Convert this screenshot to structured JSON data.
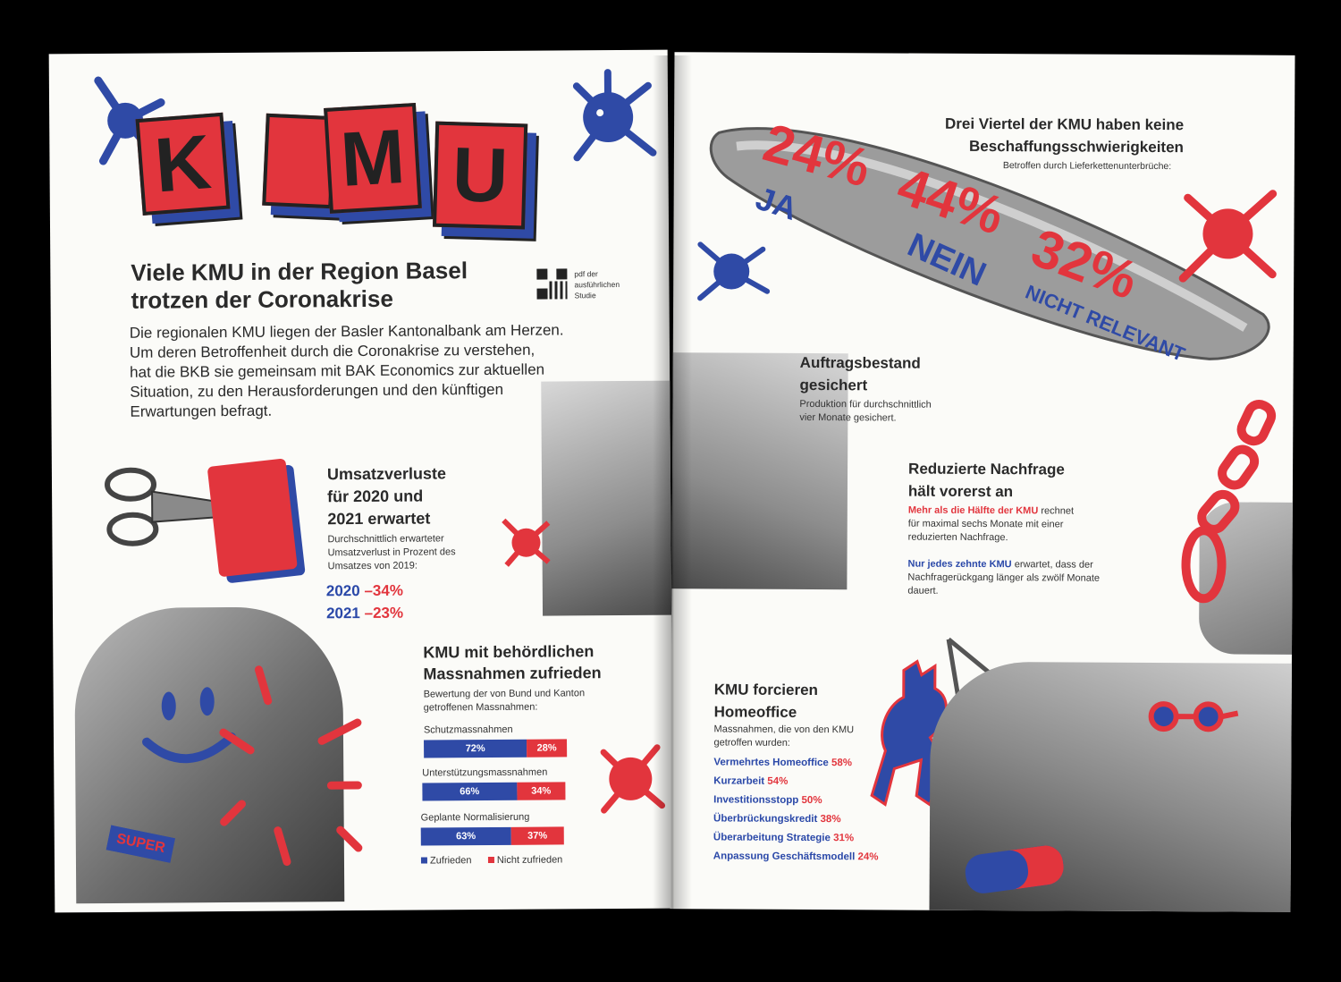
{
  "left": {
    "logo_letters": [
      "K",
      "M",
      "U"
    ],
    "headline_1": "Viele KMU in der Region Basel",
    "headline_2": "trotzen der Coronakrise",
    "qr_note_1": "pdf der",
    "qr_note_2": "ausführlichen",
    "qr_note_3": "Studie",
    "intro": [
      "Die regionalen KMU liegen der Basler Kantonalbank am Herzen.",
      "Um deren Betroffenheit durch die Coronakrise zu verstehen,",
      "hat die BKB sie gemeinsam mit BAK Economics zur aktuellen",
      "Situation, zu den Herausforderungen und den künftigen",
      "Erwartungen befragt."
    ],
    "umsatz": {
      "title": [
        "Umsatzverluste",
        "für 2020 und",
        "2021 erwartet"
      ],
      "desc": [
        "Durchschnittlich erwarteter",
        "Umsatzverlust in Prozent des",
        "Umsatzes von 2019:"
      ],
      "y1": "2020",
      "v1": "–34%",
      "y2": "2021",
      "v2": "–23%"
    },
    "badge": "SUPER",
    "massnahmen": {
      "title": [
        "KMU mit behördlichen",
        "Massnahmen zufrieden"
      ],
      "desc": [
        "Bewertung der von Bund und Kanton",
        "getroffenen Massnahmen:"
      ],
      "rows": [
        {
          "label": "Schutzmassnahmen",
          "yes": 72,
          "yes_text": "72%",
          "no_text": "28%"
        },
        {
          "label": "Unterstützungsmassnahmen",
          "yes": 66,
          "yes_text": "66%",
          "no_text": "34%"
        },
        {
          "label": "Geplante Normalisierung",
          "yes": 63,
          "yes_text": "63%",
          "no_text": "37%"
        }
      ],
      "legend_yes": "Zufrieden",
      "legend_no": "Nicht zufrieden"
    }
  },
  "right": {
    "supply": {
      "title_1": "Drei Viertel der KMU haben keine",
      "title_2": "Beschaffungsschwierigkeiten",
      "sub": "Betroffen durch Lieferkettenunterbrüche:",
      "v_ja": "24%",
      "v_nein": "44%",
      "v_nr": "32%",
      "l_ja": "JA",
      "l_nein": "NEIN",
      "l_nr": "NICHT RELEVANT"
    },
    "auftrag": {
      "title": [
        "Auftragsbestand",
        "gesichert"
      ],
      "desc": [
        "Produktion für durchschnittlich",
        "vier Monate gesichert."
      ]
    },
    "nachfrage": {
      "title": [
        "Reduzierte Nachfrage",
        "hält vorerst an"
      ],
      "p1_strong": "Mehr als die Hälfte der KMU",
      "p1_rest": [
        "rechnet",
        "für maximal sechs Monate mit einer",
        "reduzierten Nachfrage."
      ],
      "p2_strong": "Nur jedes zehnte KMU",
      "p2_rest": [
        "erwartet, dass der",
        "Nachfragerückgang länger als zwölf Monate",
        "dauert."
      ]
    },
    "homeoffice": {
      "title": [
        "KMU forcieren",
        "Homeoffice"
      ],
      "desc": [
        "Massnahmen, die von den KMU",
        "getroffen wurden:"
      ],
      "items": [
        {
          "label": "Vermehrtes Homeoffice",
          "value": "58%"
        },
        {
          "label": "Kurzarbeit",
          "value": "54%"
        },
        {
          "label": "Investitionsstopp",
          "value": "50%"
        },
        {
          "label": "Überbrückungskredit",
          "value": "38%"
        },
        {
          "label": "Überarbeitung Strategie",
          "value": "31%"
        },
        {
          "label": "Anpassung Geschäftsmodell",
          "value": "24%"
        }
      ]
    }
  },
  "colors": {
    "blue": "#2f4aa6",
    "red": "#e2353d",
    "paper": "#fbfbf8"
  }
}
